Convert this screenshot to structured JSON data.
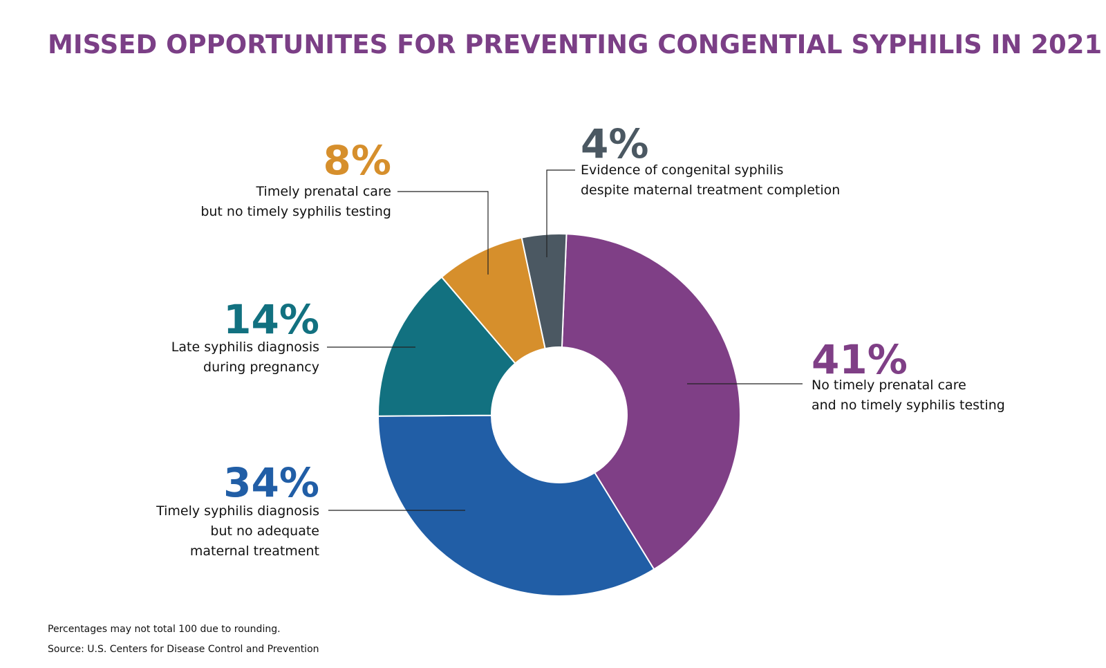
{
  "chart_data": {
    "type": "donut",
    "title": "MISSED OPPORTUNITES FOR PREVENTING CONGENTIAL SYPHILIS IN 2021",
    "categories": [
      [
        "No timely prenatal care",
        "and no timely syphilis testing"
      ],
      [
        "Timely syphilis diagnosis",
        "but no adequate",
        "maternal treatment"
      ],
      [
        "Late syphilis diagnosis",
        "during pregnancy"
      ],
      [
        "Timely prenatal care",
        "but no timely syphilis testing"
      ],
      [
        "Evidence of congenital syphilis",
        "despite maternal treatment completion"
      ]
    ],
    "values": [
      41,
      34,
      14,
      8,
      4
    ],
    "value_labels": [
      "41%",
      "34%",
      "14%",
      "8%",
      "4%"
    ],
    "colors": [
      "#7f3f86",
      "#215ea6",
      "#127180",
      "#d68f2c",
      "#4b5862"
    ],
    "notes": [
      "Percentages may not total 100 due to rounding.",
      "Source: U.S. Centers for Disease Control and Prevention"
    ]
  }
}
